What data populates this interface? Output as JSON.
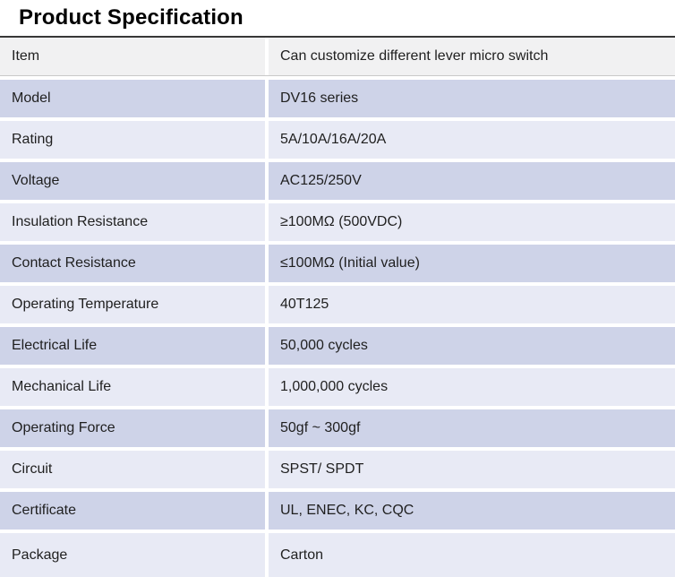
{
  "title": "Product Specification",
  "colors": {
    "top_border": "#373737",
    "header_row_bg": "#f1f1f2",
    "row_medium_lavender": "#ced3e8",
    "row_light_lavender": "#e8eaf5",
    "text": "#1f1f1f"
  },
  "table": {
    "rows": [
      {
        "label": "Item",
        "value": "Can customize different lever micro switch"
      },
      {
        "label": "Model",
        "value": "DV16 series"
      },
      {
        "label": "Rating",
        "value": "5A/10A/16A/20A"
      },
      {
        "label": "Voltage",
        "value": "AC125/250V"
      },
      {
        "label": "Insulation Resistance",
        "value": "≥100MΩ (500VDC)"
      },
      {
        "label": "Contact Resistance",
        "value": "≤100MΩ (Initial value)"
      },
      {
        "label": "Operating Temperature",
        "value": "40T125"
      },
      {
        "label": "Electrical Life",
        "value": "50,000 cycles"
      },
      {
        "label": "Mechanical Life",
        "value": "1,000,000 cycles"
      },
      {
        "label": "Operating Force",
        "value": "50gf ~ 300gf"
      },
      {
        "label": "Circuit",
        "value": "SPST/ SPDT"
      },
      {
        "label": "Certificate",
        "value": "UL, ENEC, KC, CQC"
      },
      {
        "label": "Package",
        "value": "Carton"
      }
    ]
  }
}
